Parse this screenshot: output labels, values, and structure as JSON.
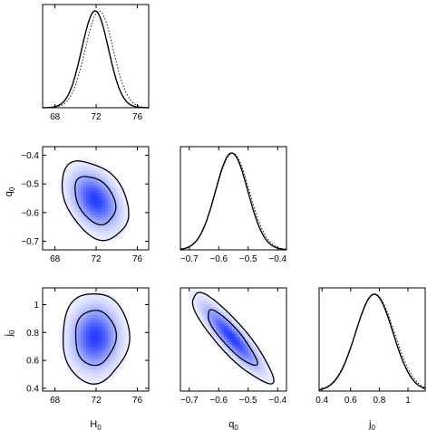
{
  "chart_data": {
    "type": "triangle-corner",
    "parameters": [
      {
        "id": "H0",
        "label_base": "H",
        "label_sub": "0",
        "range": [
          66.8,
          77.1
        ],
        "ticks": [
          68,
          72,
          76
        ],
        "tick_labels": [
          "68",
          "72",
          "76"
        ]
      },
      {
        "id": "q0",
        "label_base": "q",
        "label_sub": "0",
        "range": [
          -0.73,
          -0.37
        ],
        "ticks": [
          -0.7,
          -0.6,
          -0.5,
          -0.4
        ],
        "tick_labels": [
          "-0.7",
          "-0.6",
          "-0.5",
          "-0.4"
        ]
      },
      {
        "id": "j0",
        "label_base": "j",
        "label_sub": "0",
        "range": [
          0.38,
          1.12
        ],
        "ticks": [
          0.4,
          0.6,
          0.8,
          1.0
        ],
        "tick_labels": [
          "0.4",
          "0.6",
          "0.8",
          "1"
        ]
      }
    ],
    "marginals": [
      {
        "param": "H0",
        "mean": 71.9,
        "sd": 1.3,
        "dotted_mean": 72.3,
        "dotted_sd": 1.35
      },
      {
        "param": "q0",
        "mean": -0.556,
        "sd": 0.055,
        "dotted_mean": -0.553,
        "dotted_sd": 0.057
      },
      {
        "param": "j0",
        "mean": 0.765,
        "sd": 0.13,
        "dotted_mean": 0.77,
        "dotted_sd": 0.135
      }
    ],
    "joint": [
      {
        "x": "H0",
        "y": "q0",
        "mean": [
          71.9,
          -0.556
        ],
        "sd": [
          1.3,
          0.055
        ],
        "rho": -0.35
      },
      {
        "x": "H0",
        "y": "j0",
        "mean": [
          71.9,
          0.765
        ],
        "sd": [
          1.3,
          0.13
        ],
        "rho": 0.02
      },
      {
        "x": "q0",
        "y": "j0",
        "mean": [
          -0.556,
          0.765
        ],
        "sd": [
          0.055,
          0.13
        ],
        "rho": -0.88
      }
    ],
    "contour_levels_sigma": [
      1,
      2
    ],
    "colors": {
      "density": "#1a33ff",
      "line": "#000000",
      "frame": "#000000"
    }
  }
}
